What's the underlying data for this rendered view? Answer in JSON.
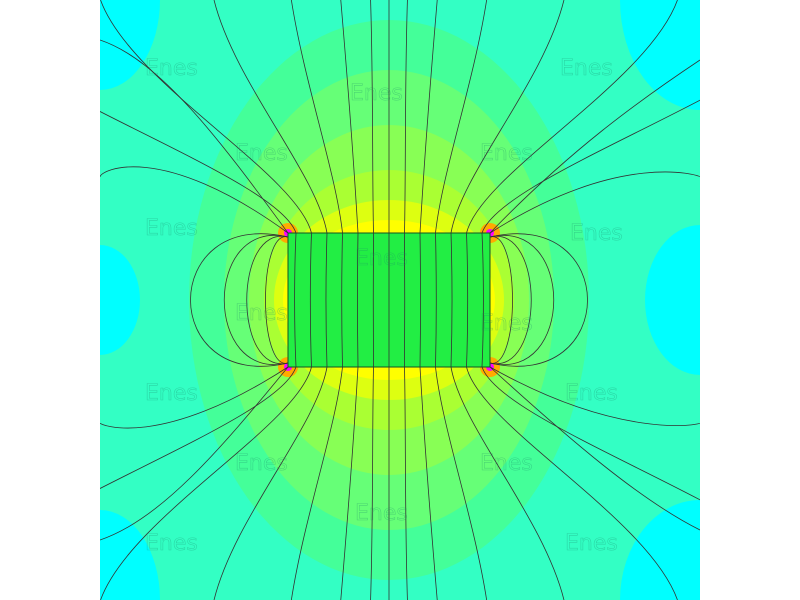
{
  "figure": {
    "watermark_text": "Enes",
    "colors": {
      "outer": "#00ffff",
      "teal": "#33ffc4",
      "mint": "#44ff99",
      "green": "#66ff77",
      "yellow_green": "#99ff44",
      "lime": "#ccff22",
      "yellow": "#ffff00",
      "orange": "#ffcc00",
      "corner": "#ff00ff",
      "magnet": "#22ee44",
      "field_line": "#333333"
    }
  }
}
